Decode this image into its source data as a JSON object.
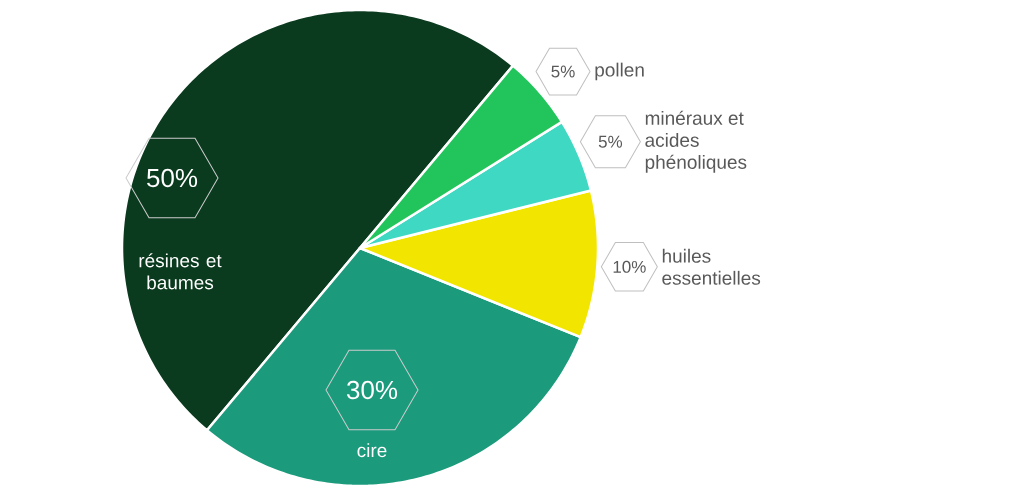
{
  "chart_data": {
    "type": "pie",
    "categories": [
      "résines et baumes",
      "cire",
      "huiles essentielles",
      "minéraux et acides phénoliques",
      "pollen"
    ],
    "values": [
      50,
      30,
      10,
      5,
      5
    ],
    "value_labels": [
      "50%",
      "30%",
      "10%",
      "5%",
      "5%"
    ],
    "colors": [
      "#0b3b1f",
      "#1b9a7c",
      "#f2e600",
      "#3fd8c2",
      "#22c45c"
    ]
  }
}
